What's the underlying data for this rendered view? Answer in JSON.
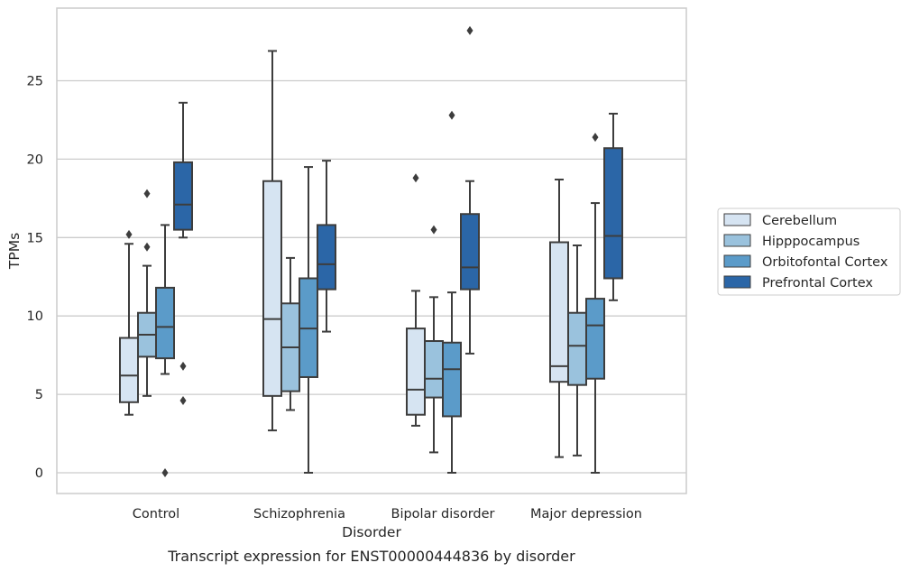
{
  "caption": "Transcript expression for ENST00000444836 by disorder",
  "chart_data": {
    "type": "box",
    "title": "",
    "xlabel": "Disorder",
    "ylabel": "TPMs",
    "ylim": [
      -1.3,
      28.8
    ],
    "yticks": [
      0,
      5,
      10,
      15,
      20,
      25
    ],
    "grid": "horizontal",
    "legend_position": "right",
    "categories": [
      "Control",
      "Schizophrenia",
      "Bipolar disorder",
      "Major depression"
    ],
    "series": [
      {
        "name": "Cerebellum",
        "color": "#d6e4f2",
        "boxes": [
          {
            "whisker_low": 3.7,
            "q1": 4.5,
            "median": 6.2,
            "q3": 8.6,
            "whisker_high": 14.6,
            "outliers": [
              15.2
            ]
          },
          {
            "whisker_low": 2.7,
            "q1": 4.9,
            "median": 9.8,
            "q3": 18.6,
            "whisker_high": 26.9,
            "outliers": []
          },
          {
            "whisker_low": 3.0,
            "q1": 3.7,
            "median": 5.3,
            "q3": 9.2,
            "whisker_high": 11.6,
            "outliers": [
              18.8
            ]
          },
          {
            "whisker_low": 1.0,
            "q1": 5.8,
            "median": 6.8,
            "q3": 14.7,
            "whisker_high": 18.7,
            "outliers": []
          }
        ]
      },
      {
        "name": "Hipppocampus",
        "color": "#9ac2dd",
        "boxes": [
          {
            "whisker_low": 4.9,
            "q1": 7.4,
            "median": 8.8,
            "q3": 10.2,
            "whisker_high": 13.2,
            "outliers": [
              17.8,
              14.4
            ]
          },
          {
            "whisker_low": 4.0,
            "q1": 5.2,
            "median": 8.0,
            "q3": 10.8,
            "whisker_high": 13.7,
            "outliers": []
          },
          {
            "whisker_low": 1.3,
            "q1": 4.8,
            "median": 6.0,
            "q3": 8.4,
            "whisker_high": 11.2,
            "outliers": [
              15.5
            ]
          },
          {
            "whisker_low": 1.1,
            "q1": 5.6,
            "median": 8.1,
            "q3": 10.2,
            "whisker_high": 14.5,
            "outliers": []
          }
        ]
      },
      {
        "name": "Orbitofontal Cortex",
        "color": "#5b9bc9",
        "boxes": [
          {
            "whisker_low": 6.3,
            "q1": 7.3,
            "median": 9.3,
            "q3": 11.8,
            "whisker_high": 15.8,
            "outliers": [
              0.0
            ]
          },
          {
            "whisker_low": 0.0,
            "q1": 6.1,
            "median": 9.2,
            "q3": 12.4,
            "whisker_high": 19.5,
            "outliers": []
          },
          {
            "whisker_low": 0.0,
            "q1": 3.6,
            "median": 6.6,
            "q3": 8.3,
            "whisker_high": 11.5,
            "outliers": [
              22.8
            ]
          },
          {
            "whisker_low": 0.0,
            "q1": 6.0,
            "median": 9.4,
            "q3": 11.1,
            "whisker_high": 17.2,
            "outliers": [
              21.4
            ]
          }
        ]
      },
      {
        "name": "Prefrontal Cortex",
        "color": "#2b66a7",
        "boxes": [
          {
            "whisker_low": 15.0,
            "q1": 15.5,
            "median": 17.1,
            "q3": 19.8,
            "whisker_high": 23.6,
            "outliers": [
              6.8,
              4.6
            ]
          },
          {
            "whisker_low": 9.0,
            "q1": 11.7,
            "median": 13.3,
            "q3": 15.8,
            "whisker_high": 19.9,
            "outliers": []
          },
          {
            "whisker_low": 7.6,
            "q1": 11.7,
            "median": 13.1,
            "q3": 16.5,
            "whisker_high": 18.6,
            "outliers": [
              28.2
            ]
          },
          {
            "whisker_low": 11.0,
            "q1": 12.4,
            "median": 15.1,
            "q3": 20.7,
            "whisker_high": 22.9,
            "outliers": []
          }
        ]
      }
    ]
  }
}
